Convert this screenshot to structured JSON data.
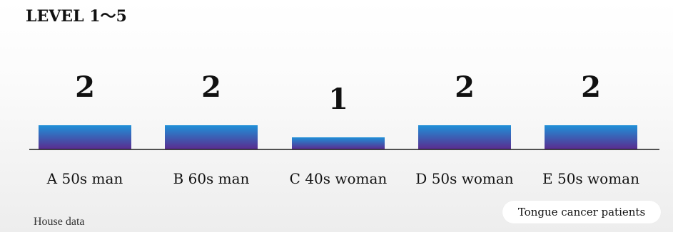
{
  "level_label": "LEVEL 1〜5",
  "source": "House data",
  "badge": "Tongue cancer patients",
  "colors": {
    "bar_top": "#1f90d8",
    "bar_bottom": "#5b2a8e",
    "baseline": "#1a1a1a"
  },
  "chart_data": {
    "type": "bar",
    "categories": [
      "A 50s man",
      "B 60s man",
      "C 40s woman",
      "D 50s woman",
      "E 50s woman"
    ],
    "values": [
      2,
      2,
      1,
      2,
      2
    ],
    "ylim": [
      0,
      5
    ],
    "grid": false,
    "title": "",
    "xlabel": "",
    "ylabel": "LEVEL 1〜5"
  }
}
